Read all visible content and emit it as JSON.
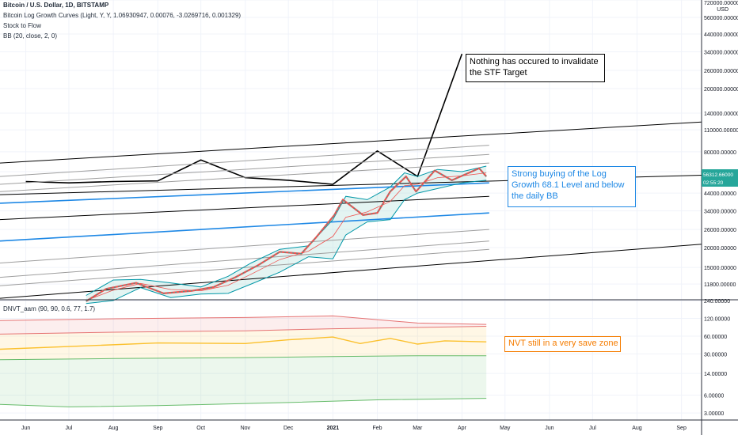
{
  "header": {
    "symbol_line": "Bitcoin / U.S. Dollar, 1D, BITSTAMP",
    "indicator_1": "Bitcoin Log Growth Curves (Light, Y, Y, 1.06930947, 0.00076, -3.0269716, 0.001329)",
    "indicator_2": "Stock to Flow",
    "indicator_3": "BB (20, close, 2, 0)",
    "lower_indicator": "DNVT_aam (90, 90, 0.6, 77, 1.7)"
  },
  "annotations": {
    "stf": "Nothing has occured to invalidate the STF Target",
    "buying": "Strong buying of the  Log Growth 68.1 Level and below the daily BB",
    "nvt": "NVT still in a very save zone"
  },
  "price_tag": {
    "price": "56312.66000",
    "countdown": "02:55:20",
    "color": "#26a69a"
  },
  "colors": {
    "up": "#26a69a",
    "down": "#ef5350",
    "bb": "#0097a7",
    "bb_fill": "#b2dfdb",
    "growth_blue": "#1e88e5",
    "nvt": "#fbc02d",
    "nvt_upper": "#e57373",
    "nvt_lower": "#66bb6a"
  },
  "chart_data": [
    {
      "type": "line",
      "pane": "price",
      "scale": "log",
      "currency": "USD",
      "ylim": [
        9500,
        720000
      ],
      "y_ticks": [
        "720000.00000",
        "560000.00000",
        "440000.00000",
        "340000.00000",
        "260000.00000",
        "200000.00000",
        "140000.00000",
        "110000.00000",
        "80000.00000",
        "60000.00000",
        "44000.00000",
        "34000.00000",
        "26000.00000",
        "20000.00000",
        "15000.00000",
        "11800.00000"
      ],
      "y_tick_values": [
        720000,
        560000,
        440000,
        340000,
        260000,
        200000,
        140000,
        110000,
        80000,
        60000,
        44000,
        34000,
        26000,
        20000,
        15000,
        11800
      ],
      "x_range": [
        "2020-05-14",
        "2021-09-15"
      ],
      "x_ticks": [
        {
          "date": "2020-06-01",
          "label": "Jun"
        },
        {
          "date": "2020-07-01",
          "label": "Jul"
        },
        {
          "date": "2020-08-01",
          "label": "Aug"
        },
        {
          "date": "2020-09-01",
          "label": "Sep"
        },
        {
          "date": "2020-10-01",
          "label": "Oct"
        },
        {
          "date": "2020-11-01",
          "label": "Nov"
        },
        {
          "date": "2020-12-01",
          "label": "Dec"
        },
        {
          "date": "2021-01-01",
          "label": "2021"
        },
        {
          "date": "2021-02-01",
          "label": "Feb"
        },
        {
          "date": "2021-03-01",
          "label": "Mar"
        },
        {
          "date": "2021-04-01",
          "label": "Apr"
        },
        {
          "date": "2021-05-01",
          "label": "May"
        },
        {
          "date": "2021-06-01",
          "label": "Jun"
        },
        {
          "date": "2021-07-01",
          "label": "Jul"
        },
        {
          "date": "2021-08-01",
          "label": "Aug"
        },
        {
          "date": "2021-09-01",
          "label": "Sep"
        }
      ],
      "series": [
        {
          "name": "Stock to Flow",
          "color": "#000000",
          "x": [
            "2020-06-01",
            "2020-07-01",
            "2020-08-01",
            "2020-09-01",
            "2020-10-01",
            "2020-11-01",
            "2020-12-01",
            "2021-01-01",
            "2021-02-01",
            "2021-03-01",
            "2021-04-01"
          ],
          "y": [
            52000,
            51000,
            52000,
            52500,
            71000,
            55000,
            53000,
            50000,
            81000,
            56000,
            330000
          ]
        },
        {
          "name": "Log growth black 1",
          "color": "#000000",
          "x": [
            "2020-05-14",
            "2021-09-15"
          ],
          "y": [
            68000,
            123000
          ]
        },
        {
          "name": "Log growth grey 1",
          "color": "#9e9e9e",
          "x": [
            "2020-05-14",
            "2021-04-20"
          ],
          "y": [
            56000,
            88000
          ]
        },
        {
          "name": "Log growth grey 2",
          "color": "#9e9e9e",
          "x": [
            "2020-05-14",
            "2021-04-20"
          ],
          "y": [
            50000,
            77000
          ]
        },
        {
          "name": "Log growth grey 3",
          "color": "#9e9e9e",
          "x": [
            "2020-05-14",
            "2021-04-20"
          ],
          "y": [
            45000,
            68000
          ]
        },
        {
          "name": "Log growth black 2",
          "color": "#000000",
          "x": [
            "2020-05-14",
            "2021-09-15"
          ],
          "y": [
            43000,
            57000
          ]
        },
        {
          "name": "Log growth blue 1",
          "color": "#1e88e5",
          "x": [
            "2020-05-14",
            "2021-04-20"
          ],
          "y": [
            38000,
            51000
          ]
        },
        {
          "name": "Log growth black 3",
          "color": "#000000",
          "x": [
            "2020-05-14",
            "2021-04-20"
          ],
          "y": [
            30000,
            42000
          ]
        },
        {
          "name": "Log growth blue 2",
          "color": "#1e88e5",
          "x": [
            "2020-05-14",
            "2021-04-20"
          ],
          "y": [
            22000,
            33000
          ]
        },
        {
          "name": "Log growth grey 4",
          "color": "#9e9e9e",
          "x": [
            "2020-05-14",
            "2021-04-20"
          ],
          "y": [
            16000,
            26000
          ]
        },
        {
          "name": "Log growth grey 5",
          "color": "#9e9e9e",
          "x": [
            "2020-05-14",
            "2021-04-20"
          ],
          "y": [
            13000,
            22000
          ]
        },
        {
          "name": "Log growth grey 6",
          "color": "#9e9e9e",
          "x": [
            "2020-05-14",
            "2021-04-20"
          ],
          "y": [
            11500,
            19500
          ]
        },
        {
          "name": "Log growth black 4",
          "color": "#000000",
          "x": [
            "2020-05-14",
            "2021-09-15"
          ],
          "y": [
            9600,
            21000
          ]
        }
      ],
      "price_path": {
        "x": [
          "2020-07-13",
          "2020-07-27",
          "2020-08-17",
          "2020-09-05",
          "2020-09-25",
          "2020-10-10",
          "2020-10-25",
          "2020-11-10",
          "2020-11-25",
          "2020-12-10",
          "2020-12-20",
          "2021-01-02",
          "2021-01-08",
          "2021-01-22",
          "2021-02-01",
          "2021-02-10",
          "2021-02-21",
          "2021-02-28",
          "2021-03-13",
          "2021-03-25",
          "2021-04-13",
          "2021-04-18"
        ],
        "y": [
          9200,
          11000,
          12000,
          10300,
          10700,
          11300,
          13000,
          15500,
          18800,
          18300,
          23000,
          32000,
          40000,
          32000,
          33000,
          45000,
          56000,
          45000,
          61000,
          53000,
          63000,
          56000
        ]
      },
      "bb": {
        "x": [
          "2020-07-13",
          "2020-08-01",
          "2020-08-20",
          "2020-09-10",
          "2020-10-01",
          "2020-10-20",
          "2020-11-05",
          "2020-11-25",
          "2020-12-15",
          "2021-01-01",
          "2021-01-10",
          "2021-01-25",
          "2021-02-10",
          "2021-02-20",
          "2021-03-01",
          "2021-03-15",
          "2021-04-01",
          "2021-04-18"
        ],
        "upper": [
          10000,
          12500,
          12600,
          12000,
          11300,
          13200,
          16000,
          19500,
          20500,
          30000,
          42000,
          40000,
          48000,
          59000,
          56000,
          62000,
          60000,
          65000
        ],
        "lower": [
          8900,
          9300,
          11200,
          9700,
          10200,
          10300,
          11800,
          14000,
          17500,
          17000,
          24000,
          29000,
          30000,
          40000,
          44000,
          47000,
          51000,
          53000
        ],
        "basis": [
          9300,
          10800,
          11900,
          10900,
          10700,
          11600,
          13600,
          16800,
          19000,
          23500,
          31000,
          33500,
          39000,
          49000,
          50000,
          55000,
          56500,
          59000
        ]
      }
    },
    {
      "type": "line",
      "pane": "indicator",
      "scale": "log",
      "ylim": [
        2.5,
        240
      ],
      "y_ticks": [
        "240.00000",
        "120.00000",
        "60.00000",
        "30.00000",
        "14.00000",
        "6.00000",
        "3.00000"
      ],
      "y_tick_values": [
        240,
        120,
        60,
        30,
        14,
        6,
        3
      ],
      "series": [
        {
          "name": "upper band",
          "color": "#e57373",
          "x": [
            "2020-05-14",
            "2020-08-01",
            "2020-11-01",
            "2021-01-01",
            "2021-03-01",
            "2021-04-18"
          ],
          "y": [
            110,
            118,
            124,
            132,
            100,
            95
          ]
        },
        {
          "name": "upper band 2",
          "color": "#e57373",
          "x": [
            "2020-05-14",
            "2020-08-01",
            "2020-11-01",
            "2021-01-01",
            "2021-03-01",
            "2021-04-18"
          ],
          "y": [
            65,
            70,
            74,
            80,
            84,
            88
          ]
        },
        {
          "name": "NVT",
          "color": "#fbc02d",
          "x": [
            "2020-05-14",
            "2020-07-01",
            "2020-09-01",
            "2020-11-01",
            "2020-12-01",
            "2021-01-01",
            "2021-01-20",
            "2021-02-10",
            "2021-03-01",
            "2021-03-20",
            "2021-04-18"
          ],
          "y": [
            36,
            40,
            46,
            45,
            52,
            58,
            45,
            55,
            44,
            50,
            48
          ]
        },
        {
          "name": "lower band",
          "color": "#66bb6a",
          "x": [
            "2020-05-14",
            "2020-08-01",
            "2020-11-01",
            "2021-01-01",
            "2021-03-01",
            "2021-04-18"
          ],
          "y": [
            24,
            25,
            26,
            27,
            28,
            28
          ]
        },
        {
          "name": "lower band 2",
          "color": "#66bb6a",
          "x": [
            "2020-05-14",
            "2020-07-01",
            "2020-09-01",
            "2020-12-01",
            "2021-02-01",
            "2021-04-18"
          ],
          "y": [
            4.2,
            3.8,
            4.0,
            4.5,
            5.0,
            5.3
          ]
        }
      ]
    }
  ]
}
